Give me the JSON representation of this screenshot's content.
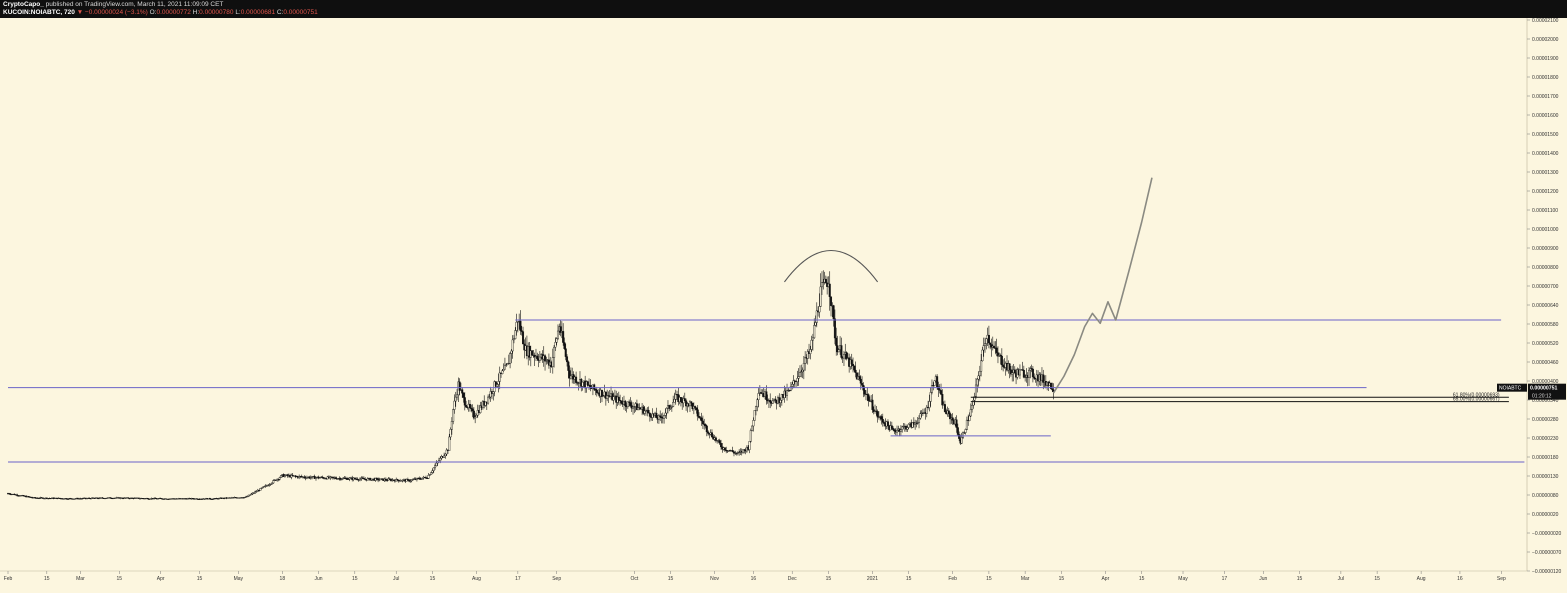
{
  "header": {
    "author": "CryptoCapo_",
    "published": "published on TradingView.com, March 11, 2021 11:09:09 CET",
    "symbol": "KUCOIN:NOIABTC, 720",
    "change": "▼ −0.00000024 (−3.1%)",
    "o_label": "O:",
    "o_val": "0.00000772",
    "h_label": "H:",
    "h_val": "0.00000780",
    "l_label": "L:",
    "l_val": "0.00000681",
    "c_label": "C:",
    "c_val": "0.00000751"
  },
  "colors": {
    "background": "#fcf6df",
    "candles": "#111111",
    "levels": "#6a63c8",
    "projection": "#8a8a82",
    "price_tag": "#111111"
  },
  "chart_data": {
    "type": "candlestick",
    "symbol": "NOIABTC",
    "timeframe": "720",
    "y_axis": {
      "ticks": [
        "0.00002100",
        "0.00002000",
        "0.00001900",
        "0.00001800",
        "0.00001700",
        "0.00001600",
        "0.00001500",
        "0.00001400",
        "0.00001300",
        "0.00001200",
        "0.00001100",
        "0.00001000",
        "0.00000900",
        "0.00000800",
        "0.00000700",
        "0.00000640",
        "0.00000580",
        "0.00000520",
        "0.00000460",
        "0.00000400",
        "0.00000340",
        "0.00000280",
        "0.00000230",
        "0.00000180",
        "0.00000130",
        "0.00000080",
        "0.00000020",
        "−0.00000020",
        "−0.00000070",
        "−0.00000120"
      ]
    },
    "x_axis": {
      "ticks": [
        {
          "label": "Feb",
          "t": 0
        },
        {
          "label": "15",
          "t": 15
        },
        {
          "label": "Mar",
          "t": 28
        },
        {
          "label": "15",
          "t": 43
        },
        {
          "label": "Apr",
          "t": 59
        },
        {
          "label": "15",
          "t": 74
        },
        {
          "label": "May",
          "t": 89
        },
        {
          "label": "18",
          "t": 106
        },
        {
          "label": "Jun",
          "t": 120
        },
        {
          "label": "15",
          "t": 134
        },
        {
          "label": "Jul",
          "t": 150
        },
        {
          "label": "15",
          "t": 164
        },
        {
          "label": "Aug",
          "t": 181
        },
        {
          "label": "17",
          "t": 197
        },
        {
          "label": "Sep",
          "t": 212
        },
        {
          "label": "Oct",
          "t": 242
        },
        {
          "label": "15",
          "t": 256
        },
        {
          "label": "Nov",
          "t": 273
        },
        {
          "label": "16",
          "t": 288
        },
        {
          "label": "Dec",
          "t": 303
        },
        {
          "label": "15",
          "t": 317
        },
        {
          "label": "2021",
          "t": 334
        },
        {
          "label": "15",
          "t": 348
        },
        {
          "label": "Feb",
          "t": 365
        },
        {
          "label": "15",
          "t": 379
        },
        {
          "label": "Mar",
          "t": 393
        },
        {
          "label": "15",
          "t": 407
        },
        {
          "label": "Apr",
          "t": 424
        },
        {
          "label": "15",
          "t": 438
        },
        {
          "label": "May",
          "t": 454
        },
        {
          "label": "17",
          "t": 470
        },
        {
          "label": "Jun",
          "t": 485
        },
        {
          "label": "15",
          "t": 499
        },
        {
          "label": "Jul",
          "t": 515
        },
        {
          "label": "15",
          "t": 529
        },
        {
          "label": "Aug",
          "t": 546
        },
        {
          "label": "16",
          "t": 561
        },
        {
          "label": "Sep",
          "t": 577
        }
      ]
    },
    "last_price": {
      "symbol": "NOIABTC",
      "value": "0.00000751",
      "countdown": "01:20:12"
    },
    "price_path": [
      {
        "t": 0,
        "v": 1.12e-06
      },
      {
        "t": 10,
        "v": 8.5e-07
      },
      {
        "t": 25,
        "v": 8e-07
      },
      {
        "t": 40,
        "v": 8.5e-07
      },
      {
        "t": 60,
        "v": 8e-07
      },
      {
        "t": 80,
        "v": 8e-07
      },
      {
        "t": 92,
        "v": 9e-07
      },
      {
        "t": 100,
        "v": 1.6e-06
      },
      {
        "t": 106,
        "v": 2.2e-06
      },
      {
        "t": 115,
        "v": 2.1e-06
      },
      {
        "t": 135,
        "v": 2e-06
      },
      {
        "t": 155,
        "v": 1.9e-06
      },
      {
        "t": 162,
        "v": 2.1e-06
      },
      {
        "t": 166,
        "v": 3e-06
      },
      {
        "t": 170,
        "v": 3.8e-06
      },
      {
        "t": 172,
        "v": 6.2e-06
      },
      {
        "t": 174,
        "v": 7.7e-06
      },
      {
        "t": 176,
        "v": 6.8e-06
      },
      {
        "t": 180,
        "v": 5.8e-06
      },
      {
        "t": 185,
        "v": 6.8e-06
      },
      {
        "t": 189,
        "v": 7.9e-06
      },
      {
        "t": 193,
        "v": 8.8e-06
      },
      {
        "t": 197,
        "v": 1.17e-05
      },
      {
        "t": 200,
        "v": 9.8e-06
      },
      {
        "t": 205,
        "v": 9.4e-06
      },
      {
        "t": 210,
        "v": 9e-06
      },
      {
        "t": 213,
        "v": 1.13e-05
      },
      {
        "t": 217,
        "v": 8.3e-06
      },
      {
        "t": 225,
        "v": 7.5e-06
      },
      {
        "t": 235,
        "v": 6.8e-06
      },
      {
        "t": 245,
        "v": 6.2e-06
      },
      {
        "t": 252,
        "v": 5.6e-06
      },
      {
        "t": 258,
        "v": 6.9e-06
      },
      {
        "t": 264,
        "v": 6.5e-06
      },
      {
        "t": 270,
        "v": 5e-06
      },
      {
        "t": 276,
        "v": 3.9e-06
      },
      {
        "t": 282,
        "v": 3.5e-06
      },
      {
        "t": 286,
        "v": 3.9e-06
      },
      {
        "t": 290,
        "v": 7.4e-06
      },
      {
        "t": 296,
        "v": 6.6e-06
      },
      {
        "t": 302,
        "v": 7.3e-06
      },
      {
        "t": 310,
        "v": 9.7e-06
      },
      {
        "t": 314,
        "v": 1.33e-05
      },
      {
        "t": 317,
        "v": 1.41e-05
      },
      {
        "t": 320,
        "v": 1.01e-05
      },
      {
        "t": 326,
        "v": 8.8e-06
      },
      {
        "t": 331,
        "v": 7.3e-06
      },
      {
        "t": 336,
        "v": 5.8e-06
      },
      {
        "t": 342,
        "v": 4.9e-06
      },
      {
        "t": 350,
        "v": 5.3e-06
      },
      {
        "t": 355,
        "v": 6.2e-06
      },
      {
        "t": 358,
        "v": 8.2e-06
      },
      {
        "t": 362,
        "v": 6.1e-06
      },
      {
        "t": 366,
        "v": 5.4e-06
      },
      {
        "t": 368,
        "v": 4.2e-06
      },
      {
        "t": 373,
        "v": 6.6e-06
      },
      {
        "t": 378,
        "v": 1.08e-05
      },
      {
        "t": 382,
        "v": 9.5e-06
      },
      {
        "t": 388,
        "v": 8.4e-06
      },
      {
        "t": 395,
        "v": 8.4e-06
      },
      {
        "t": 400,
        "v": 8e-06
      },
      {
        "t": 404,
        "v": 7.51e-06
      }
    ],
    "horizontal_levels": [
      {
        "value": 1.16e-05,
        "t_start": 196,
        "t_end": 580
      },
      {
        "value": 7.51e-06,
        "t_start": 0,
        "t_end": 528
      },
      {
        "value": 3.02e-06,
        "t_start": 0,
        "t_end": 589
      },
      {
        "value": 4.6e-06,
        "t_start": 341,
        "t_end": 406
      }
    ],
    "fib_levels": [
      {
        "label": "61.80%(0.00000693)",
        "value": 6.93e-06,
        "t_start": 372,
        "t_end": 583
      },
      {
        "label": "65.00%(0.00000667)",
        "value": 6.67e-06,
        "t_start": 372,
        "t_end": 583
      }
    ],
    "projection_path": [
      {
        "t": 404,
        "v": 7.2e-06
      },
      {
        "t": 408,
        "v": 8.2e-06
      },
      {
        "t": 412,
        "v": 9.5e-06
      },
      {
        "t": 416,
        "v": 1.12e-05
      },
      {
        "t": 419,
        "v": 1.2e-05
      },
      {
        "t": 422,
        "v": 1.14e-05
      },
      {
        "t": 425,
        "v": 1.27e-05
      },
      {
        "t": 428,
        "v": 1.16e-05
      },
      {
        "t": 433,
        "v": 1.45e-05
      },
      {
        "t": 438,
        "v": 1.75e-05
      },
      {
        "t": 442,
        "v": 2.02e-05
      }
    ],
    "top_arc": {
      "t_start": 300,
      "t_end": 336,
      "v_base": 1.39e-05,
      "v_peak": 1.58e-05
    }
  }
}
